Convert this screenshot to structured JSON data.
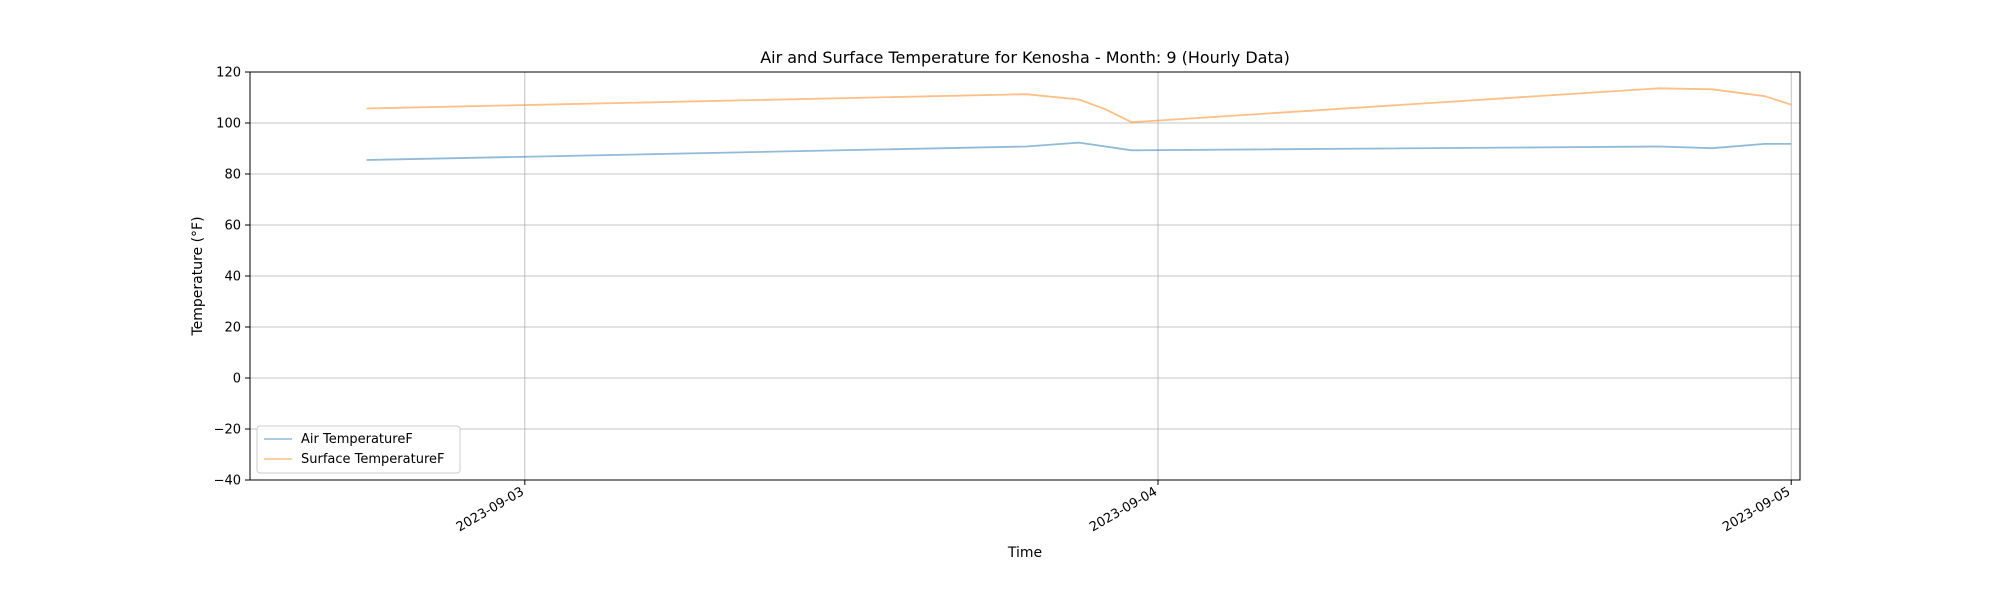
{
  "chart_data": {
    "type": "line",
    "title": "Air and Surface Temperature for Kenosha - Month: 9 (Hourly Data)",
    "xlabel": "Time",
    "ylabel": "Temperature (°F)",
    "xlim": [
      "2023-09-02 13:35",
      "2023-09-05 00:20"
    ],
    "ylim": [
      -40,
      120
    ],
    "yticks": [
      -40,
      -20,
      0,
      20,
      40,
      60,
      80,
      100,
      120
    ],
    "xticks": [
      "2023-09-03",
      "2023-09-04",
      "2023-09-05"
    ],
    "grid": true,
    "legend_position": "lower-left",
    "series": [
      {
        "name": "Air TemperatureF",
        "color": "#1f77b4",
        "points": [
          {
            "x": "2023-09-02 18:00",
            "y": 85.5
          },
          {
            "x": "2023-09-03 19:00",
            "y": 90.8
          },
          {
            "x": "2023-09-03 21:00",
            "y": 92.3
          },
          {
            "x": "2023-09-03 23:00",
            "y": 89.3
          },
          {
            "x": "2023-09-04 19:00",
            "y": 90.8
          },
          {
            "x": "2023-09-04 21:00",
            "y": 90.1
          },
          {
            "x": "2023-09-04 23:00",
            "y": 91.8
          },
          {
            "x": "2023-09-05 00:00",
            "y": 91.8
          }
        ]
      },
      {
        "name": "Surface TemperatureF",
        "color": "#ff7f0e",
        "points": [
          {
            "x": "2023-09-02 18:00",
            "y": 105.7
          },
          {
            "x": "2023-09-03 19:00",
            "y": 111.3
          },
          {
            "x": "2023-09-03 21:00",
            "y": 109.2
          },
          {
            "x": "2023-09-03 22:00",
            "y": 105.4
          },
          {
            "x": "2023-09-03 23:00",
            "y": 100.3
          },
          {
            "x": "2023-09-04 19:00",
            "y": 113.6
          },
          {
            "x": "2023-09-04 21:00",
            "y": 113.2
          },
          {
            "x": "2023-09-04 23:00",
            "y": 110.5
          },
          {
            "x": "2023-09-05 00:00",
            "y": 107.2
          }
        ]
      }
    ]
  }
}
